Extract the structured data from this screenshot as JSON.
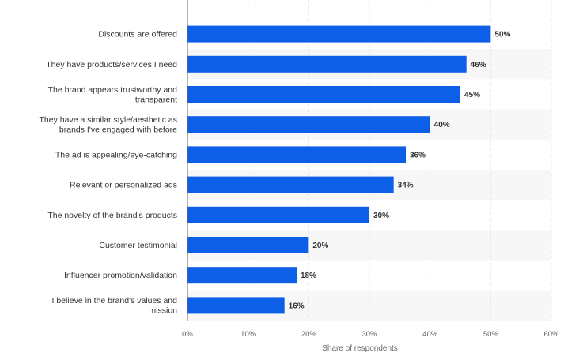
{
  "chart_data": {
    "type": "bar",
    "orientation": "horizontal",
    "categories": [
      "Discounts are offered",
      "They have products/services I need",
      "The brand appears trustworthy and transparent",
      "They have a similar style/aesthetic as brands I've engaged with before",
      "The ad is appealing/eye-catching",
      "Relevant or personalized ads",
      "The novelty of the brand's products",
      "Customer testimonial",
      "Influencer promotion/validation",
      "I believe in the brand's values and mission"
    ],
    "category_lines": [
      [
        "Discounts are offered"
      ],
      [
        "They have products/services I need"
      ],
      [
        "The brand appears trustworthy and",
        "transparent"
      ],
      [
        "They have a similar style/aesthetic as",
        "brands I've engaged with before"
      ],
      [
        "The ad is appealing/eye-catching"
      ],
      [
        "Relevant or personalized ads"
      ],
      [
        "The novelty of the brand's products"
      ],
      [
        "Customer testimonial"
      ],
      [
        "Influencer promotion/validation"
      ],
      [
        "I believe in the brand's values and",
        "mission"
      ]
    ],
    "values": [
      50,
      46,
      45,
      40,
      36,
      34,
      30,
      20,
      18,
      16
    ],
    "data_labels": [
      "50%",
      "46%",
      "45%",
      "40%",
      "36%",
      "34%",
      "30%",
      "20%",
      "18%",
      "16%"
    ],
    "xlabel": "Share of respondents",
    "ylabel": "",
    "xlim": [
      0,
      60
    ],
    "ticks": [
      0,
      10,
      20,
      30,
      40,
      50,
      60
    ],
    "tick_labels": [
      "0%",
      "10%",
      "20%",
      "30%",
      "40%",
      "50%",
      "60%"
    ],
    "grid": true,
    "colors": {
      "bar": "#0d5fe8",
      "band": "#f7f7f7",
      "grid": "#d8d8d8",
      "axis": "#666666"
    }
  }
}
